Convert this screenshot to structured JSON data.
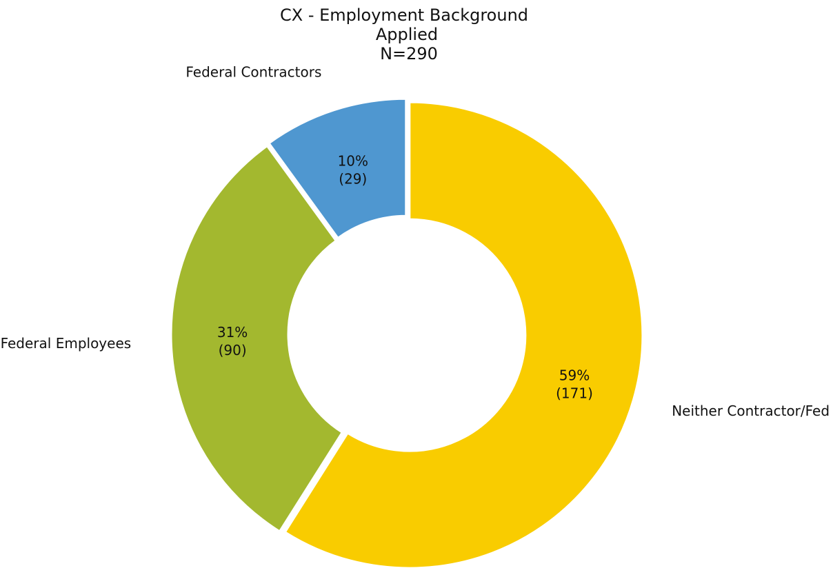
{
  "chart_data": {
    "type": "pie",
    "donut": true,
    "title_lines": [
      "CX - Employment Background",
      "Applied",
      "N=290"
    ],
    "start_angle_deg": 90,
    "direction": "clockwise",
    "slices": [
      {
        "label": "Neither Contractor/Fed",
        "value": 171,
        "percent_label": "59%",
        "count_label": "(171)",
        "color": "#F9CC00"
      },
      {
        "label": "Federal Employees",
        "value": 90,
        "percent_label": "31%",
        "count_label": "(90)",
        "color": "#A3B82F"
      },
      {
        "label": "Federal Contractors",
        "value": 29,
        "percent_label": "10%",
        "count_label": "(29)",
        "color": "#4F97D0"
      }
    ]
  }
}
